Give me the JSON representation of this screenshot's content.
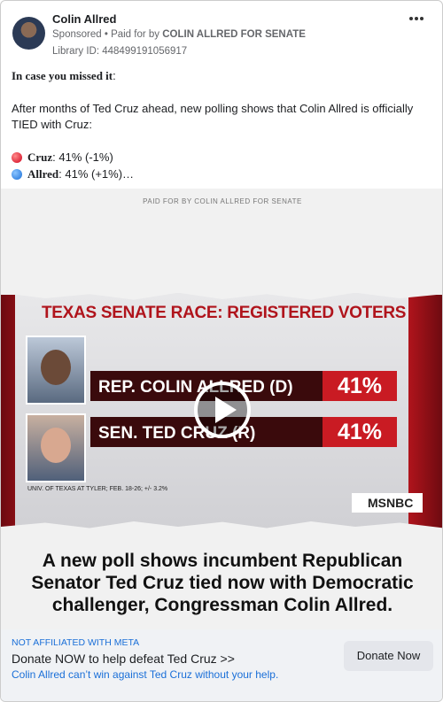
{
  "header": {
    "name": "Colin Allred",
    "sponsored": "Sponsored",
    "separator": "•",
    "paid_for_label": "Paid for by",
    "paid_for_org": "COLIN ALLRED FOR SENATE",
    "library_id": "Library ID: 448499191056917"
  },
  "post": {
    "intro_bold": "In case you missed it",
    "intro_colon": ":",
    "body": "After months of Ted Cruz ahead, new polling shows that Colin Allred is officially TIED with Cruz:",
    "lines": [
      {
        "name": "Cruz",
        "text": ": 41% (-1%)"
      },
      {
        "name": "Allred",
        "text": ": 41% (+1%)…"
      }
    ]
  },
  "image": {
    "paid_for": "PAID FOR BY COLIN ALLRED FOR SENATE",
    "title": "TEXAS SENATE RACE: REGISTERED VOTERS",
    "rows": [
      {
        "label": "REP. COLIN ALLRED (D)",
        "value": "41%"
      },
      {
        "label": "SEN. TED CRUZ (R)",
        "value": "41%"
      }
    ],
    "source": "UNIV. OF TEXAS AT TYLER; FEB. 18-26; +/- 3.2%",
    "network": "MSNBC",
    "caption": "A new poll shows incumbent Republican Senator Ted Cruz tied now with Democratic challenger, Congressman Colin Allred."
  },
  "footer": {
    "disclaimer": "NOT AFFILIATED WITH META",
    "headline": "Donate NOW to help defeat Ted Cruz >>",
    "description": "Colin Allred can’t win against Ted Cruz without your help.",
    "button": "Donate Now"
  }
}
